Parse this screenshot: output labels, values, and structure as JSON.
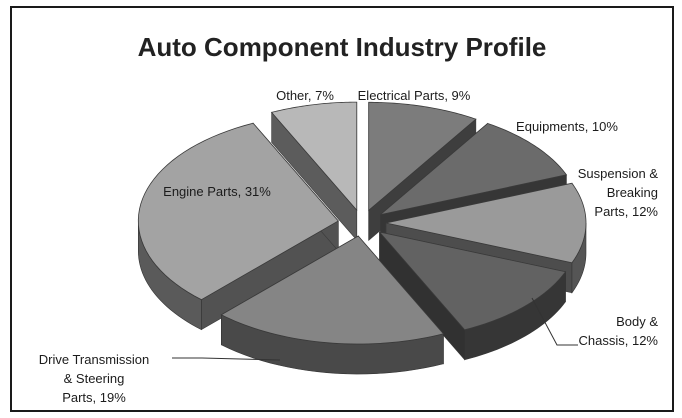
{
  "chart_data": {
    "type": "pie",
    "title": "Auto Component Industry Profile",
    "slices": [
      {
        "name": "Electrical Parts",
        "value": 9,
        "label_lines": [
          "Electrical Parts, 9%"
        ],
        "color": "#7c7c7c"
      },
      {
        "name": "Equipments",
        "value": 10,
        "label_lines": [
          "Equipments, 10%"
        ],
        "color": "#6b6b6b"
      },
      {
        "name": "Suspension & Breaking Parts",
        "value": 12,
        "label_lines": [
          "Suspension &",
          "Breaking",
          "Parts, 12%"
        ],
        "color": "#9a9a9a"
      },
      {
        "name": "Body & Chassis",
        "value": 12,
        "label_lines": [
          "Body &",
          "Chassis, 12%"
        ],
        "color": "#626262"
      },
      {
        "name": "Drive Transmission & Steering Parts",
        "value": 19,
        "label_lines": [
          "Drive Transmission",
          "& Steering",
          "Parts, 19%"
        ],
        "color": "#858585"
      },
      {
        "name": "Engine Parts",
        "value": 31,
        "label_lines": [
          "Engine Parts, 31%"
        ],
        "color": "#a3a3a3"
      },
      {
        "name": "Other",
        "value": 7,
        "label_lines": [
          "Other, 7%"
        ],
        "color": "#b8b8b8"
      }
    ],
    "legend": "none"
  }
}
